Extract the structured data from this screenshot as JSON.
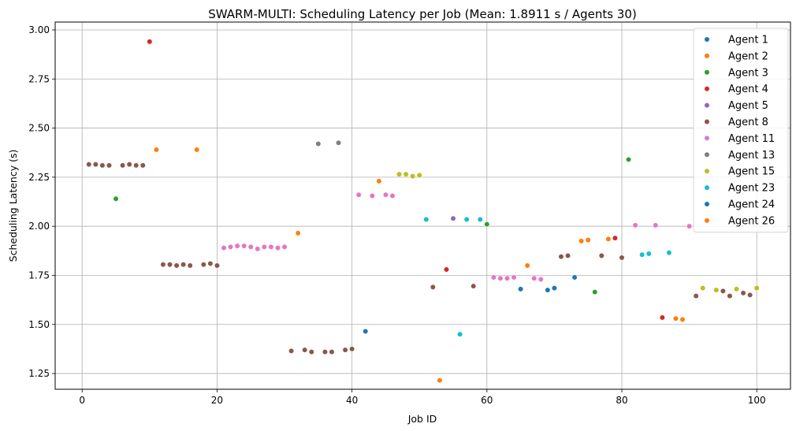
{
  "chart_data": {
    "type": "scatter",
    "title": "SWARM-MULTI: Scheduling Latency per Job (Mean: 1.8911 s / Agents 30)",
    "xlabel": "Job ID",
    "ylabel": "Scheduling Latency (s)",
    "xlim": [
      -4,
      105
    ],
    "ylim": [
      1.17,
      3.04
    ],
    "xticks": [
      0,
      20,
      40,
      60,
      80,
      100
    ],
    "xtick_labels": [
      "0",
      "20",
      "40",
      "60",
      "80",
      "100"
    ],
    "yticks": [
      1.25,
      1.5,
      1.75,
      2.0,
      2.25,
      2.5,
      2.75,
      3.0
    ],
    "ytick_labels": [
      "1.25",
      "1.50",
      "1.75",
      "2.00",
      "2.25",
      "2.50",
      "2.75",
      "3.00"
    ],
    "grid": true,
    "legend_position": "top-right",
    "series": [
      {
        "name": "Agent 1",
        "color": "#1f77b4",
        "points": []
      },
      {
        "name": "Agent 2",
        "color": "#ff7f0e",
        "points": [
          [
            11,
            2.39
          ],
          [
            17,
            2.39
          ],
          [
            32,
            1.965
          ],
          [
            44,
            2.23
          ],
          [
            53,
            1.215
          ],
          [
            66,
            1.8
          ],
          [
            74,
            1.925
          ],
          [
            75,
            1.93
          ],
          [
            78,
            1.935
          ],
          [
            88,
            1.53
          ],
          [
            89,
            1.525
          ]
        ]
      },
      {
        "name": "Agent 3",
        "color": "#2ca02c",
        "points": [
          [
            5,
            2.14
          ],
          [
            60,
            2.01
          ],
          [
            76,
            1.665
          ],
          [
            81,
            2.34
          ]
        ]
      },
      {
        "name": "Agent 4",
        "color": "#d62728",
        "points": [
          [
            10,
            2.94
          ],
          [
            54,
            1.78
          ],
          [
            79,
            1.94
          ],
          [
            86,
            1.535
          ]
        ]
      },
      {
        "name": "Agent 5",
        "color": "#9467bd",
        "points": [
          [
            55,
            2.04
          ]
        ]
      },
      {
        "name": "Agent 8",
        "color": "#8c564b",
        "points": [
          [
            1,
            2.315
          ],
          [
            2,
            2.315
          ],
          [
            3,
            2.31
          ],
          [
            4,
            2.31
          ],
          [
            6,
            2.31
          ],
          [
            7,
            2.315
          ],
          [
            8,
            2.31
          ],
          [
            9,
            2.31
          ],
          [
            12,
            1.805
          ],
          [
            13,
            1.805
          ],
          [
            14,
            1.8
          ],
          [
            15,
            1.805
          ],
          [
            16,
            1.8
          ],
          [
            18,
            1.805
          ],
          [
            19,
            1.81
          ],
          [
            20,
            1.8
          ],
          [
            31,
            1.365
          ],
          [
            33,
            1.37
          ],
          [
            34,
            1.36
          ],
          [
            36,
            1.36
          ],
          [
            37,
            1.36
          ],
          [
            39,
            1.37
          ],
          [
            40,
            1.375
          ],
          [
            52,
            1.69
          ],
          [
            58,
            1.695
          ],
          [
            71,
            1.845
          ],
          [
            72,
            1.85
          ],
          [
            77,
            1.85
          ],
          [
            80,
            1.84
          ],
          [
            91,
            1.645
          ],
          [
            95,
            1.67
          ],
          [
            96,
            1.645
          ],
          [
            98,
            1.66
          ],
          [
            99,
            1.65
          ]
        ]
      },
      {
        "name": "Agent 11",
        "color": "#e377c2",
        "points": [
          [
            21,
            1.89
          ],
          [
            22,
            1.895
          ],
          [
            23,
            1.9
          ],
          [
            24,
            1.9
          ],
          [
            25,
            1.895
          ],
          [
            26,
            1.885
          ],
          [
            27,
            1.895
          ],
          [
            28,
            1.895
          ],
          [
            29,
            1.89
          ],
          [
            30,
            1.895
          ],
          [
            41,
            2.16
          ],
          [
            43,
            2.155
          ],
          [
            45,
            2.16
          ],
          [
            46,
            2.155
          ],
          [
            61,
            1.74
          ],
          [
            62,
            1.735
          ],
          [
            63,
            1.735
          ],
          [
            64,
            1.74
          ],
          [
            67,
            1.735
          ],
          [
            68,
            1.73
          ],
          [
            82,
            2.005
          ],
          [
            85,
            2.005
          ],
          [
            90,
            2.0
          ]
        ]
      },
      {
        "name": "Agent 13",
        "color": "#7f7f7f",
        "points": [
          [
            35,
            2.42
          ],
          [
            38,
            2.425
          ]
        ]
      },
      {
        "name": "Agent 15",
        "color": "#bcbd22",
        "points": [
          [
            47,
            2.265
          ],
          [
            48,
            2.265
          ],
          [
            49,
            2.255
          ],
          [
            50,
            2.26
          ],
          [
            92,
            1.685
          ],
          [
            94,
            1.675
          ],
          [
            97,
            1.68
          ],
          [
            100,
            1.685
          ]
        ]
      },
      {
        "name": "Agent 23",
        "color": "#17becf",
        "points": [
          [
            51,
            2.035
          ],
          [
            56,
            1.45
          ],
          [
            57,
            2.035
          ],
          [
            59,
            2.035
          ],
          [
            83,
            1.855
          ],
          [
            84,
            1.86
          ],
          [
            87,
            1.865
          ]
        ]
      },
      {
        "name": "Agent 24",
        "color": "#1f77b4",
        "points": [
          [
            42,
            1.465
          ],
          [
            65,
            1.68
          ],
          [
            69,
            1.675
          ],
          [
            70,
            1.685
          ],
          [
            73,
            1.74
          ]
        ]
      },
      {
        "name": "Agent 26",
        "color": "#ff7f0e",
        "points": []
      }
    ]
  }
}
